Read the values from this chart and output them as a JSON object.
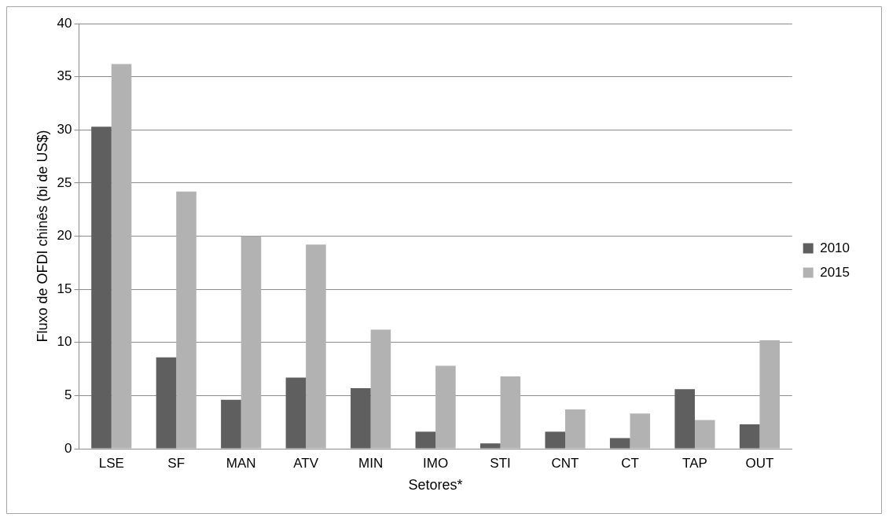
{
  "chart_data": {
    "type": "bar",
    "xlabel": "Setores*",
    "ylabel": "Fluxo de OFDI chinês (bi de US$)",
    "categories": [
      "LSE",
      "SF",
      "MAN",
      "ATV",
      "MIN",
      "IMO",
      "STI",
      "CNT",
      "CT",
      "TAP",
      "OUT"
    ],
    "series": [
      {
        "name": "2010",
        "color": "#5f5f5f",
        "values": [
          30.3,
          8.6,
          4.6,
          6.7,
          5.7,
          1.6,
          0.5,
          1.6,
          1.0,
          5.6,
          2.3
        ]
      },
      {
        "name": "2015",
        "color": "#b2b2b2",
        "values": [
          36.2,
          24.2,
          20.0,
          19.2,
          11.2,
          7.8,
          6.8,
          3.7,
          3.3,
          2.7,
          10.2
        ]
      }
    ],
    "ylim": [
      0,
      40
    ],
    "yticks": [
      0,
      5,
      10,
      15,
      20,
      25,
      30,
      35,
      40
    ],
    "grid": "y",
    "legend": "right"
  }
}
